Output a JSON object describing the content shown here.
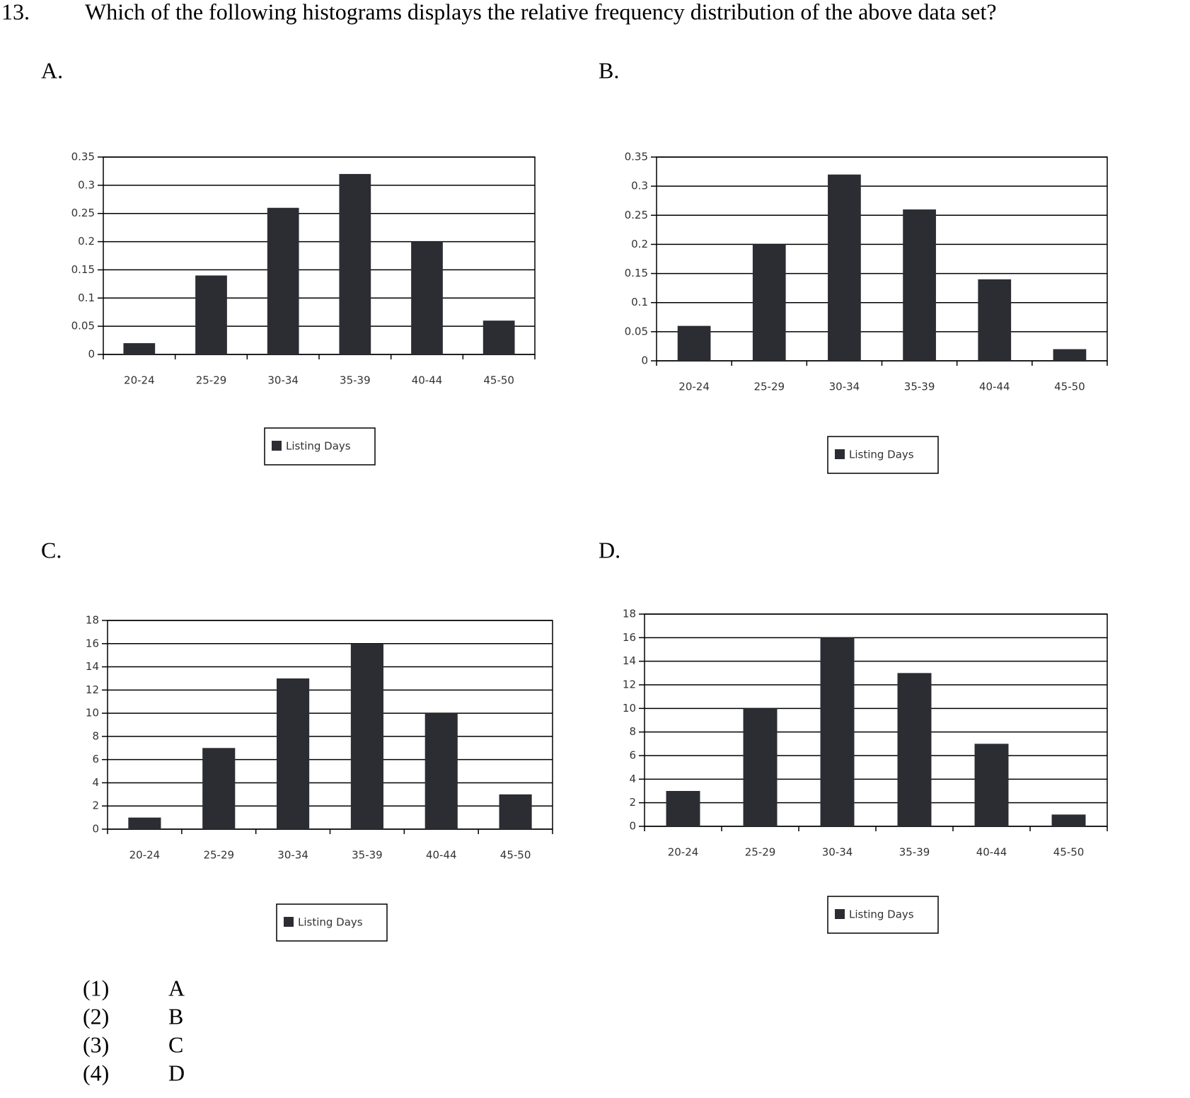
{
  "question": {
    "number": "13.",
    "text": "Which of the following histograms displays the relative frequency distribution of the above data set?"
  },
  "chart_data": [
    {
      "type": "bar",
      "label": "A.",
      "categories": [
        "20-24",
        "25-29",
        "30-34",
        "35-39",
        "40-44",
        "45-50"
      ],
      "series": [
        {
          "name": "Listing Days",
          "color": "#2b2d33",
          "values": [
            0.02,
            0.14,
            0.26,
            0.32,
            0.2,
            0.06
          ]
        }
      ],
      "ylim": [
        0,
        0.35
      ],
      "yticks": [
        0,
        0.05,
        0.1,
        0.15,
        0.2,
        0.25,
        0.3,
        0.35
      ],
      "grid": true
    },
    {
      "type": "bar",
      "label": "B.",
      "categories": [
        "20-24",
        "25-29",
        "30-34",
        "35-39",
        "40-44",
        "45-50"
      ],
      "series": [
        {
          "name": "Listing Days",
          "color": "#2b2d33",
          "values": [
            0.06,
            0.2,
            0.32,
            0.26,
            0.14,
            0.02
          ]
        }
      ],
      "ylim": [
        0,
        0.35
      ],
      "yticks": [
        0,
        0.05,
        0.1,
        0.15,
        0.2,
        0.25,
        0.3,
        0.35
      ],
      "grid": true
    },
    {
      "type": "bar",
      "label": "C.",
      "categories": [
        "20-24",
        "25-29",
        "30-34",
        "35-39",
        "40-44",
        "45-50"
      ],
      "series": [
        {
          "name": "Listing Days",
          "color": "#2b2d33",
          "values": [
            1,
            7,
            13,
            16,
            10,
            3
          ]
        }
      ],
      "ylim": [
        0,
        18
      ],
      "yticks": [
        0,
        2,
        4,
        6,
        8,
        10,
        12,
        14,
        16,
        18
      ],
      "grid": true
    },
    {
      "type": "bar",
      "label": "D.",
      "categories": [
        "20-24",
        "25-29",
        "30-34",
        "35-39",
        "40-44",
        "45-50"
      ],
      "series": [
        {
          "name": "Listing Days",
          "color": "#2b2d33",
          "values": [
            3,
            10,
            16,
            13,
            7,
            1
          ]
        }
      ],
      "ylim": [
        0,
        18
      ],
      "yticks": [
        0,
        2,
        4,
        6,
        8,
        10,
        12,
        14,
        16,
        18
      ],
      "grid": true
    }
  ],
  "choices": [
    {
      "number": "(1)",
      "answer": "A"
    },
    {
      "number": "(2)",
      "answer": "B"
    },
    {
      "number": "(3)",
      "answer": "C"
    },
    {
      "number": "(4)",
      "answer": "D"
    }
  ]
}
